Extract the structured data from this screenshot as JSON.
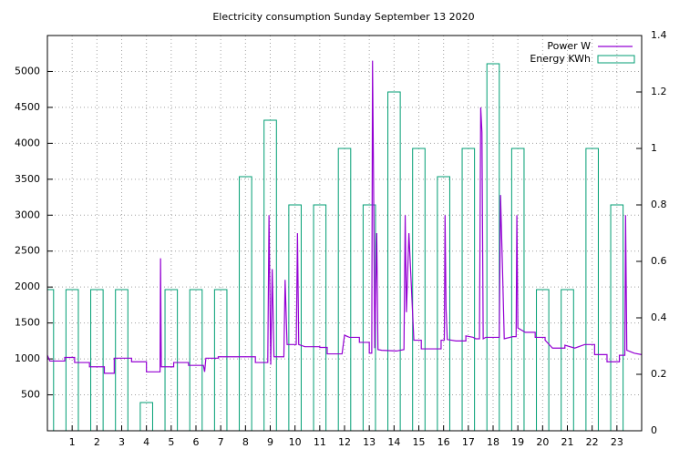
{
  "chart_data": {
    "type": "line",
    "title": "Electricity consumption Sunday September 13 2020",
    "xlim": [
      0,
      24
    ],
    "xticks": [
      1,
      2,
      3,
      4,
      5,
      6,
      7,
      8,
      9,
      10,
      11,
      12,
      13,
      14,
      15,
      16,
      17,
      18,
      19,
      20,
      21,
      22,
      23
    ],
    "ylim": [
      0,
      5500
    ],
    "yticks": [
      500,
      1000,
      1500,
      2000,
      2500,
      3000,
      3500,
      4000,
      4500,
      5000
    ],
    "y2lim": [
      0,
      1.4
    ],
    "y2ticks": [
      0,
      0.2,
      0.4,
      0.6,
      0.8,
      1,
      1.2,
      1.4
    ],
    "grid": true,
    "legend": "top-right",
    "series": [
      {
        "name": "Power W",
        "color": "#9400d3",
        "style": "line",
        "x": [
          0,
          0.1,
          0.7,
          0.7,
          1.1,
          1.1,
          1.7,
          1.7,
          2.3,
          2.3,
          2.7,
          2.7,
          3.4,
          3.4,
          4,
          4,
          4.55,
          4.57,
          4.6,
          5.1,
          5.1,
          5.7,
          5.7,
          6.3,
          6.35,
          6.4,
          6.9,
          6.9,
          8.4,
          8.4,
          8.9,
          8.95,
          9.02,
          9.08,
          9.15,
          9.55,
          9.6,
          9.68,
          10.05,
          10.1,
          10.15,
          10.4,
          11,
          11,
          11.3,
          11.3,
          11.9,
          12,
          12.2,
          12.6,
          12.6,
          13,
          13,
          13.1,
          13.13,
          13.17,
          13.22,
          13.3,
          13.35,
          13.5,
          14.1,
          14.4,
          14.45,
          14.5,
          14.6,
          14.7,
          14.8,
          15.1,
          15.1,
          15.9,
          15.9,
          16.03,
          16.06,
          16.1,
          16.15,
          16.5,
          16.9,
          16.9,
          17.2,
          17.3,
          17.45,
          17.5,
          17.55,
          17.6,
          17.7,
          18.25,
          18.3,
          18.38,
          18.45,
          18.8,
          18.93,
          18.96,
          19,
          19.3,
          19.7,
          19.7,
          20.1,
          20.1,
          20.4,
          20.9,
          20.9,
          21.3,
          21.7,
          22.1,
          22.1,
          22.6,
          22.6,
          23.1,
          23.1,
          23.32,
          23.35,
          23.4,
          23.7,
          24
        ],
        "values": [
          1050,
          970,
          970,
          1020,
          1020,
          950,
          950,
          890,
          890,
          800,
          800,
          1010,
          1010,
          960,
          960,
          820,
          820,
          2400,
          890,
          890,
          950,
          950,
          910,
          910,
          820,
          1010,
          1010,
          1030,
          1030,
          950,
          950,
          3000,
          920,
          2250,
          1030,
          1030,
          2100,
          1200,
          1200,
          2750,
          1200,
          1170,
          1170,
          1160,
          1160,
          1070,
          1070,
          1330,
          1300,
          1300,
          1230,
          1230,
          1080,
          1080,
          5150,
          3600,
          1150,
          2750,
          1130,
          1120,
          1110,
          1130,
          3000,
          1650,
          2750,
          2000,
          1260,
          1260,
          1140,
          1140,
          1260,
          1260,
          3000,
          1700,
          1270,
          1250,
          1250,
          1320,
          1300,
          1280,
          1280,
          4500,
          4150,
          1280,
          1300,
          1300,
          3280,
          2250,
          1280,
          1310,
          1310,
          3000,
          1430,
          1370,
          1370,
          1300,
          1300,
          1260,
          1150,
          1150,
          1190,
          1150,
          1200,
          1200,
          1060,
          1060,
          960,
          960,
          1050,
          1050,
          3000,
          1120,
          1080,
          1060
        ]
      },
      {
        "name": "Energy KWh",
        "color": "#009e73",
        "style": "boxes",
        "axis": "y2",
        "x": [
          0,
          1,
          2,
          3,
          4,
          5,
          6,
          7,
          8,
          9,
          10,
          11,
          12,
          13,
          14,
          15,
          16,
          17,
          18,
          19,
          20,
          21,
          22,
          23
        ],
        "values": [
          0.5,
          0.5,
          0.5,
          0.5,
          0.1,
          0.5,
          0.5,
          0.5,
          0.9,
          1.1,
          0.8,
          0.8,
          1.0,
          0.8,
          1.2,
          1.0,
          0.9,
          1.0,
          1.3,
          1.0,
          0.5,
          0.5,
          1.0,
          0.8
        ]
      }
    ]
  }
}
